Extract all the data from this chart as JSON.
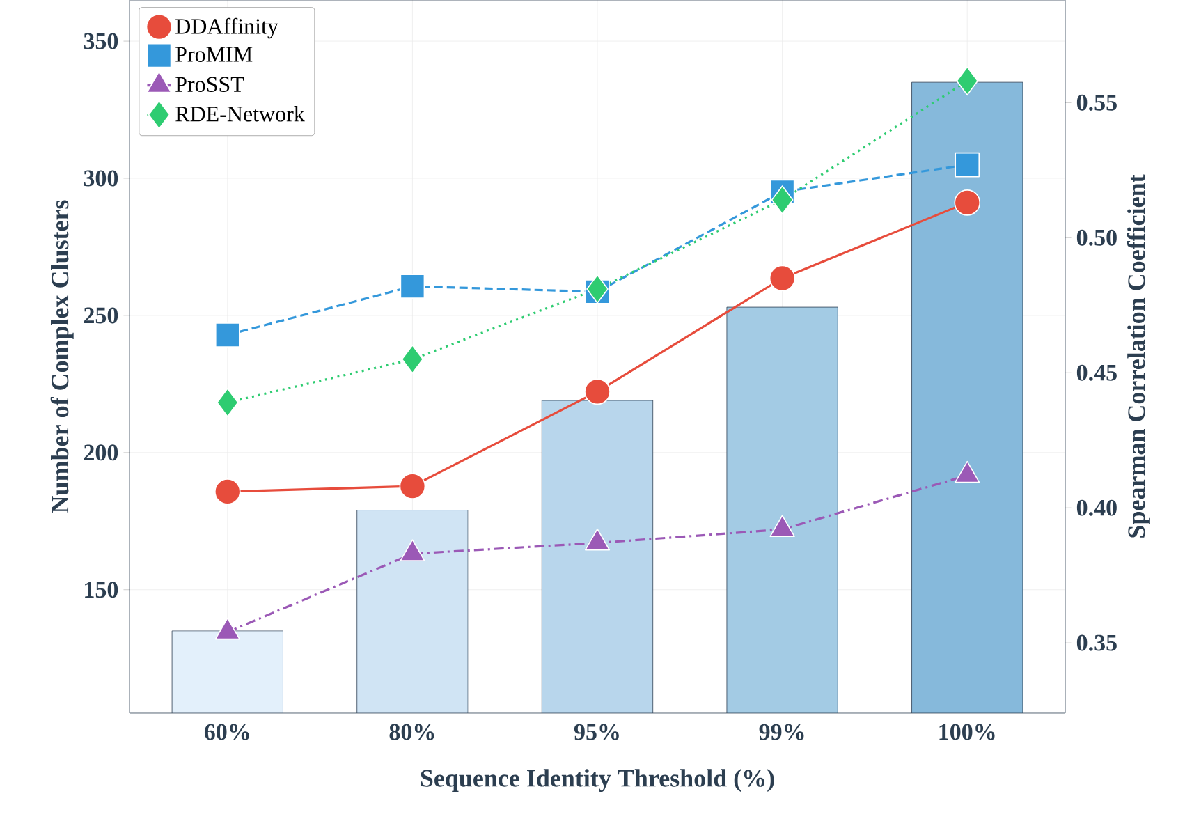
{
  "chart_data": {
    "type": "bar",
    "xlabel": "Sequence Identity Threshold (%)",
    "ylabel": "Number of Complex Clusters",
    "y2label": "Spearman Correlation Coefficient",
    "categories": [
      "60%",
      "80%",
      "95%",
      "99%",
      "100%"
    ],
    "series": [
      {
        "colors": [
          "#e3f0fb",
          "#d0e4f4",
          "#b8d6ec",
          "#a3cbe4",
          "#86b9db"
        ],
        "values": [
          135,
          179,
          219,
          253,
          335
        ]
      },
      {
        "type": "line",
        "axis": "y2",
        "name": "DDAffinity",
        "color": "#e74c3c",
        "marker": "circle",
        "line_style": "solid",
        "values": [
          0.406,
          0.408,
          0.443,
          0.485,
          0.513
        ]
      },
      {
        "type": "line",
        "axis": "y2",
        "name": "ProMIM",
        "color": "#3498db",
        "marker": "square",
        "line_style": "dashed",
        "values": [
          0.464,
          0.482,
          0.48,
          0.517,
          0.527
        ]
      },
      {
        "type": "line",
        "axis": "y2",
        "name": "ProSST",
        "color": "#9b59b6",
        "marker": "triangle",
        "line_style": "dashdot",
        "values": [
          0.354,
          0.383,
          0.387,
          0.392,
          0.412
        ]
      },
      {
        "type": "line",
        "axis": "y2",
        "name": "RDE-Network",
        "color": "#2ecc71",
        "marker": "diamond",
        "line_style": "dotted",
        "values": [
          0.439,
          0.455,
          0.481,
          0.514,
          0.558
        ]
      }
    ],
    "ylim": [
      105,
      365
    ],
    "yticks": [
      150,
      200,
      250,
      300,
      350
    ],
    "y2lim": [
      0.324,
      0.588
    ],
    "y2ticks": [
      0.35,
      {
        "value": 0.4,
        "label": "0.40"
      },
      0.45,
      {
        "value": 0.5,
        "label": "0.50"
      },
      0.55
    ],
    "grid": true,
    "legend": "top left"
  }
}
